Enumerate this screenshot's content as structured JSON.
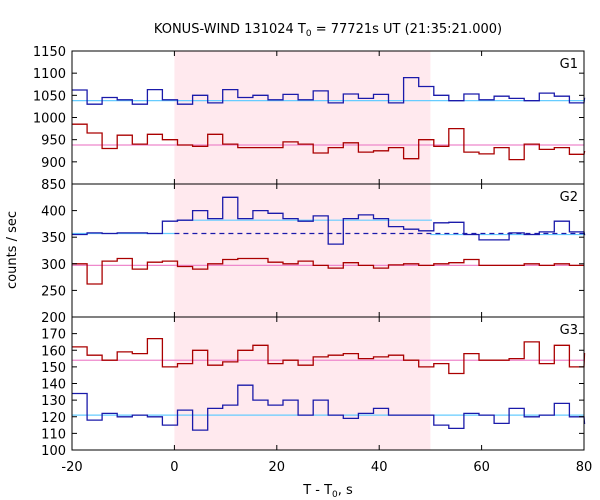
{
  "chart_data": {
    "type": "line",
    "title": "KONUS-WIND 131024 T",
    "title_sub": "0",
    "title_rest": " = 77721s UT (21:35:21.000)",
    "xlabel": "T - T",
    "xlabel_sub": "0",
    "xlabel_rest": ", s",
    "ylabel": "counts / sec",
    "xlim": [
      -20,
      80
    ],
    "xticks": [
      -20,
      0,
      20,
      40,
      60,
      80
    ],
    "shaded_interval": [
      0,
      50
    ],
    "colors": {
      "red": "#aa0000",
      "blue": "#1a1aaa",
      "pink": "#ee88cc",
      "cyan": "#66ccff",
      "shade": "#ffe9ee"
    },
    "panels": [
      {
        "label": "G1",
        "ylim": [
          850,
          1150
        ],
        "yticks": [
          850,
          900,
          950,
          1000,
          1050,
          1100,
          1150
        ],
        "fits": [
          {
            "color": "cyan",
            "dash": false,
            "segments": [
              {
                "x0": -20,
                "x1": 80,
                "y": 1038
              }
            ]
          },
          {
            "color": "pink",
            "dash": false,
            "segments": [
              {
                "x0": -20,
                "x1": 80,
                "y": 938
              }
            ]
          }
        ],
        "series": [
          {
            "color": "blue",
            "bin_start": -20,
            "bin_width": 2.944,
            "values": [
              1062,
              1030,
              1045,
              1040,
              1030,
              1063,
              1040,
              1030,
              1050,
              1033,
              1063,
              1045,
              1050,
              1040,
              1052,
              1040,
              1060,
              1033,
              1053,
              1043,
              1052,
              1033,
              1090,
              1070,
              1050,
              1038,
              1053,
              1040,
              1048,
              1043,
              1038,
              1055,
              1048,
              1033,
              1043
            ]
          },
          {
            "color": "red",
            "bin_start": -20,
            "bin_width": 2.944,
            "values": [
              985,
              965,
              930,
              960,
              940,
              962,
              950,
              938,
              935,
              962,
              940,
              932,
              932,
              932,
              945,
              940,
              920,
              932,
              943,
              922,
              925,
              932,
              907,
              950,
              935,
              975,
              922,
              918,
              932,
              905,
              940,
              928,
              932,
              917,
              923
            ]
          }
        ]
      },
      {
        "label": "G2",
        "ylim": [
          200,
          450
        ],
        "yticks": [
          200,
          250,
          300,
          350,
          400
        ],
        "fits": [
          {
            "color": "cyan",
            "dash": false,
            "segments": [
              {
                "x0": -20,
                "x1": 0,
                "y": 357
              },
              {
                "x0": 50,
                "x1": 80,
                "y": 355
              },
              {
                "x0": 0.4,
                "x1": 50.3,
                "y": 382
              }
            ]
          },
          {
            "color": "blue",
            "dash": true,
            "segments": [
              {
                "x0": 0,
                "x1": 80,
                "y": 357
              }
            ]
          },
          {
            "color": "pink",
            "dash": false,
            "segments": [
              {
                "x0": -20,
                "x1": 80,
                "y": 297
              }
            ]
          }
        ],
        "series": [
          {
            "color": "blue",
            "bin_start": -20,
            "bin_width": 2.944,
            "values": [
              355,
              358,
              357,
              358,
              358,
              357,
              380,
              382,
              400,
              385,
              425,
              385,
              400,
              395,
              385,
              380,
              390,
              337,
              385,
              392,
              385,
              370,
              365,
              362,
              377,
              378,
              355,
              345,
              345,
              358,
              355,
              360,
              380,
              360,
              355
            ]
          },
          {
            "color": "red",
            "bin_start": -20,
            "bin_width": 2.944,
            "values": [
              300,
              262,
              305,
              310,
              290,
              303,
              305,
              295,
              290,
              300,
              308,
              310,
              310,
              303,
              300,
              305,
              297,
              292,
              302,
              297,
              292,
              298,
              300,
              297,
              300,
              302,
              308,
              297,
              297,
              297,
              300,
              297,
              300,
              297,
              297
            ]
          }
        ]
      },
      {
        "label": "G3",
        "ylim": [
          100,
          180
        ],
        "yticks": [
          100,
          110,
          120,
          130,
          140,
          150,
          160,
          170
        ],
        "fits": [
          {
            "color": "cyan",
            "dash": false,
            "segments": [
              {
                "x0": -20,
                "x1": 80,
                "y": 121
              }
            ]
          },
          {
            "color": "pink",
            "dash": false,
            "segments": [
              {
                "x0": -20,
                "x1": 80,
                "y": 154
              }
            ]
          }
        ],
        "series": [
          {
            "color": "blue",
            "bin_start": -20,
            "bin_width": 2.944,
            "values": [
              134,
              118,
              122,
              120,
              121,
              120,
              115,
              124,
              112,
              125,
              127,
              139,
              130,
              127,
              130,
              121,
              130,
              121,
              119,
              122,
              125,
              121,
              121,
              121,
              115,
              113,
              122,
              121,
              116,
              125,
              120,
              121,
              128,
              120,
              116
            ]
          },
          {
            "color": "red",
            "bin_start": -20,
            "bin_width": 2.944,
            "values": [
              162,
              157,
              154,
              159,
              158,
              167,
              150,
              152,
              160,
              151,
              153,
              160,
              163,
              152,
              154,
              151,
              156,
              157,
              158,
              155,
              156,
              157,
              154,
              150,
              152,
              146,
              158,
              154,
              154,
              155,
              165,
              152,
              163,
              150,
              158
            ]
          }
        ]
      }
    ]
  }
}
